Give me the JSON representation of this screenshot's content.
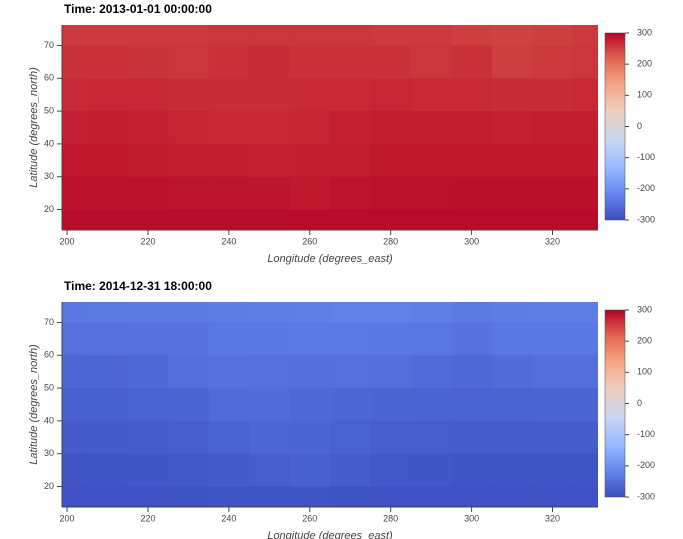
{
  "chart_data": [
    {
      "type": "heatmap",
      "title": "Time: 2013-01-01 00:00:00",
      "xlabel": "Longitude (degrees_east)",
      "ylabel": "Latitude (degrees_north)",
      "x": [
        200,
        210,
        220,
        230,
        240,
        250,
        260,
        270,
        280,
        290,
        300,
        310,
        320,
        330
      ],
      "y": [
        75,
        65,
        55,
        45,
        35,
        25,
        15
      ],
      "values": [
        [
          255,
          255,
          255,
          255,
          258,
          258,
          258,
          258,
          255,
          255,
          250,
          248,
          250,
          255
        ],
        [
          262,
          262,
          260,
          258,
          262,
          265,
          262,
          262,
          262,
          258,
          262,
          252,
          255,
          258
        ],
        [
          268,
          270,
          270,
          265,
          265,
          265,
          268,
          268,
          270,
          268,
          268,
          265,
          265,
          268
        ],
        [
          275,
          278,
          275,
          272,
          270,
          270,
          272,
          275,
          278,
          278,
          278,
          275,
          278,
          278
        ],
        [
          282,
          282,
          280,
          278,
          278,
          275,
          276,
          278,
          282,
          282,
          282,
          282,
          282,
          282
        ],
        [
          288,
          288,
          288,
          285,
          285,
          285,
          282,
          286,
          288,
          288,
          290,
          290,
          290,
          290
        ],
        [
          292,
          292,
          292,
          292,
          292,
          292,
          294,
          294,
          294,
          294,
          294,
          294,
          294,
          294
        ]
      ],
      "xlim": [
        198.75,
        331.25
      ],
      "ylim": [
        13.75,
        76.25
      ],
      "xticks": [
        200,
        220,
        240,
        260,
        280,
        300,
        320
      ],
      "yticks": [
        20,
        30,
        40,
        50,
        60,
        70
      ],
      "clim": [
        -300,
        300
      ],
      "cticks": [
        300,
        200,
        100,
        0,
        -100,
        -200,
        -300
      ],
      "colormap": [
        "#3b4cc0",
        "#6788ee",
        "#9abbff",
        "#c9d7f0",
        "#edd1c2",
        "#f7a889",
        "#e26952",
        "#b40426"
      ]
    },
    {
      "type": "heatmap",
      "title": "Time: 2014-12-31 18:00:00",
      "xlabel": "Longitude (degrees_east)",
      "ylabel": "Latitude (degrees_north)",
      "x": [
        200,
        210,
        220,
        230,
        240,
        250,
        260,
        270,
        280,
        290,
        300,
        310,
        320,
        330
      ],
      "y": [
        75,
        65,
        55,
        45,
        35,
        25,
        15
      ],
      "values": [
        [
          -238,
          -236,
          -234,
          -234,
          -232,
          -230,
          -228,
          -226,
          -226,
          -228,
          -236,
          -232,
          -230,
          -230
        ],
        [
          -250,
          -248,
          -246,
          -244,
          -240,
          -238,
          -236,
          -236,
          -238,
          -240,
          -246,
          -240,
          -238,
          -238
        ],
        [
          -262,
          -262,
          -258,
          -252,
          -248,
          -250,
          -252,
          -250,
          -252,
          -256,
          -258,
          -255,
          -252,
          -252
        ],
        [
          -272,
          -272,
          -270,
          -264,
          -256,
          -254,
          -258,
          -262,
          -264,
          -266,
          -268,
          -266,
          -265,
          -265
        ],
        [
          -280,
          -280,
          -278,
          -274,
          -268,
          -262,
          -264,
          -270,
          -274,
          -276,
          -278,
          -278,
          -278,
          -278
        ],
        [
          -288,
          -288,
          -286,
          -284,
          -280,
          -276,
          -272,
          -278,
          -284,
          -286,
          -288,
          -288,
          -288,
          -288
        ],
        [
          -294,
          -294,
          -294,
          -292,
          -290,
          -290,
          -290,
          -292,
          -294,
          -294,
          -294,
          -294,
          -294,
          -294
        ]
      ],
      "xlim": [
        198.75,
        331.25
      ],
      "ylim": [
        13.75,
        76.25
      ],
      "xticks": [
        200,
        220,
        240,
        260,
        280,
        300,
        320
      ],
      "yticks": [
        20,
        30,
        40,
        50,
        60,
        70
      ],
      "clim": [
        -300,
        300
      ],
      "cticks": [
        300,
        200,
        100,
        0,
        -100,
        -200,
        -300
      ],
      "colormap": [
        "#3b4cc0",
        "#6788ee",
        "#9abbff",
        "#c9d7f0",
        "#edd1c2",
        "#f7a889",
        "#e26952",
        "#b40426"
      ]
    }
  ]
}
